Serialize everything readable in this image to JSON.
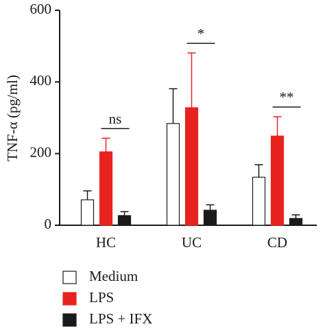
{
  "chart_data": {
    "type": "bar",
    "ylabel": "TNF-α (pg/ml)",
    "categories": [
      "HC",
      "UC",
      "CD"
    ],
    "series": [
      {
        "name": "Medium",
        "color": "#ffffff",
        "values": [
          71,
          284,
          134
        ],
        "errors": [
          25,
          97,
          35
        ]
      },
      {
        "name": "LPS",
        "color": "#e8231f",
        "values": [
          205,
          328,
          249
        ],
        "errors": [
          38,
          153,
          54
        ]
      },
      {
        "name": "LPS + IFX",
        "color": "#1a1a1a",
        "values": [
          27,
          42,
          19
        ],
        "errors": [
          11,
          15,
          10
        ]
      }
    ],
    "annotations": [
      "ns",
      "*",
      "**"
    ],
    "ylim": [
      0,
      600
    ],
    "yticks": [
      0,
      200,
      400,
      600
    ],
    "grid": false
  }
}
